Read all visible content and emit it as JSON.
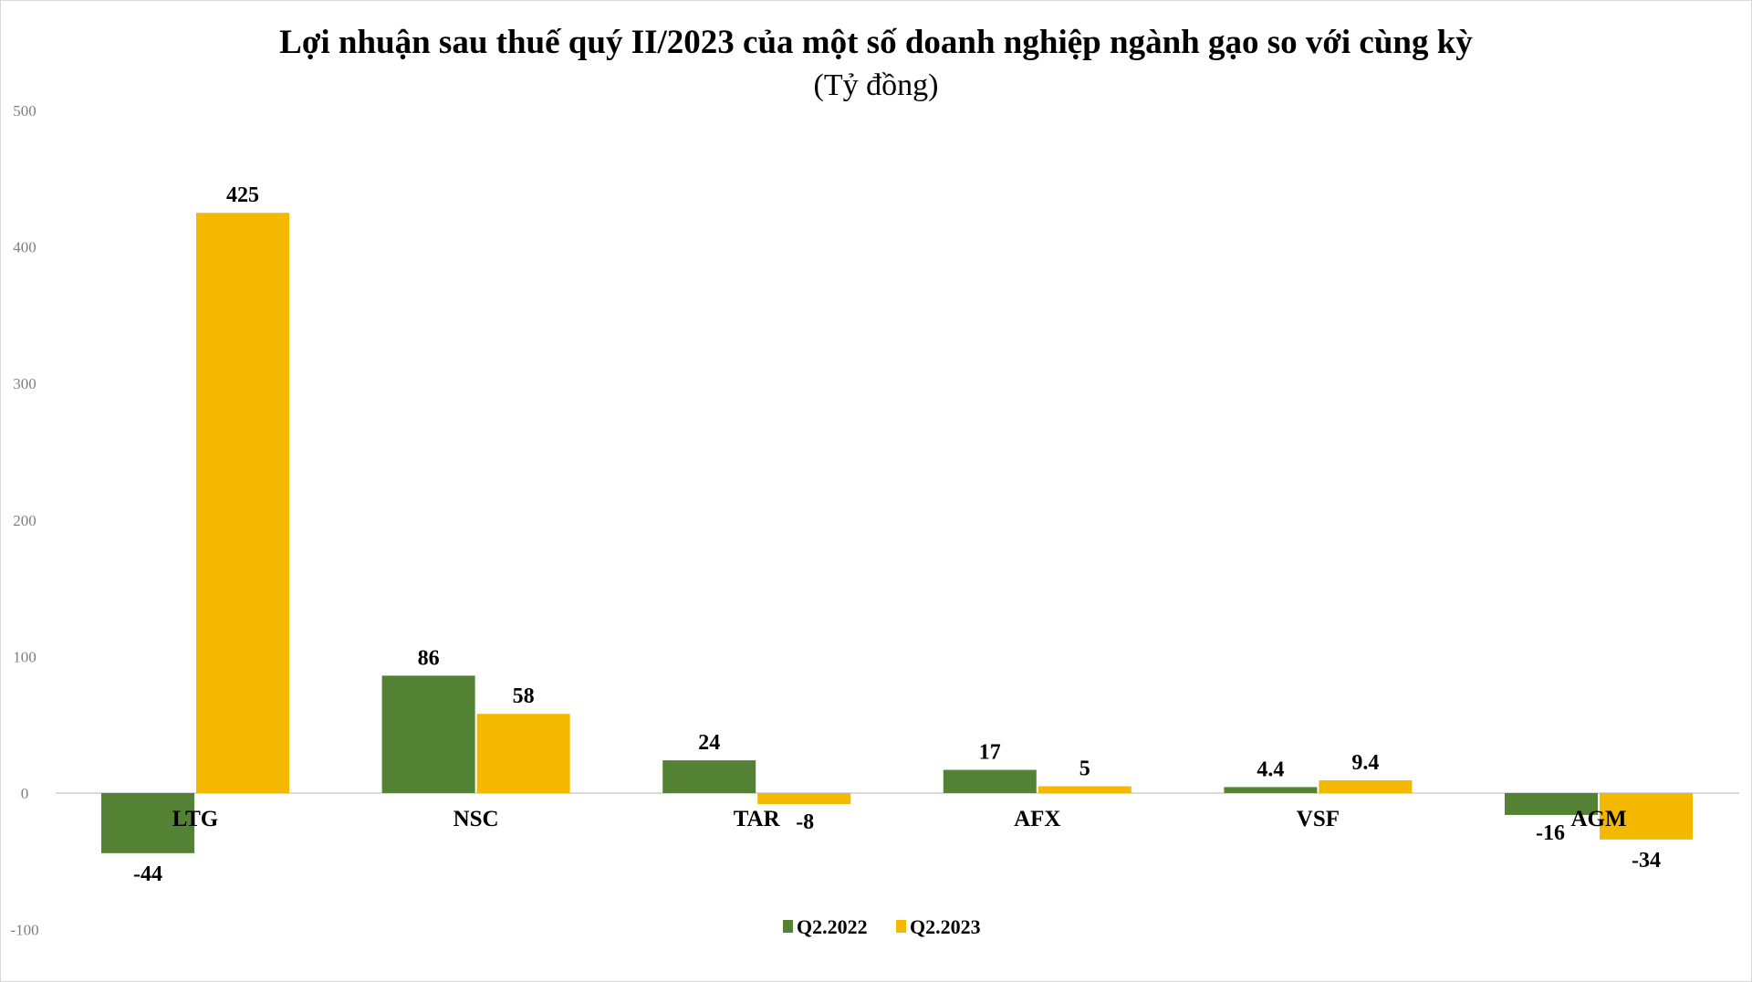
{
  "chart_data": {
    "type": "bar",
    "title": "Lợi nhuận sau thuế quý II/2023 của một số doanh nghiệp ngành gạo so với cùng kỳ",
    "subtitle": "(Tỷ đồng)",
    "xlabel": "",
    "ylabel": "",
    "ylim": [
      -100,
      500
    ],
    "yticks": [
      -100,
      0,
      100,
      200,
      300,
      400,
      500
    ],
    "grid": false,
    "legend_position": "bottom",
    "categories": [
      "LTG",
      "NSC",
      "TAR",
      "AFX",
      "VSF",
      "AGM"
    ],
    "series": [
      {
        "name": "Q2.2022",
        "color": "#548235",
        "values": [
          -44,
          86,
          24,
          17,
          4.4,
          -16
        ],
        "labels": [
          "-44",
          "86",
          "24",
          "17",
          "4.4",
          "-16"
        ]
      },
      {
        "name": "Q2.2023",
        "color": "#F5B800",
        "values": [
          425,
          58,
          -8,
          5,
          9.4,
          -34
        ],
        "labels": [
          "425",
          "58",
          "-8",
          "5",
          "9.4",
          "-34"
        ]
      }
    ]
  }
}
